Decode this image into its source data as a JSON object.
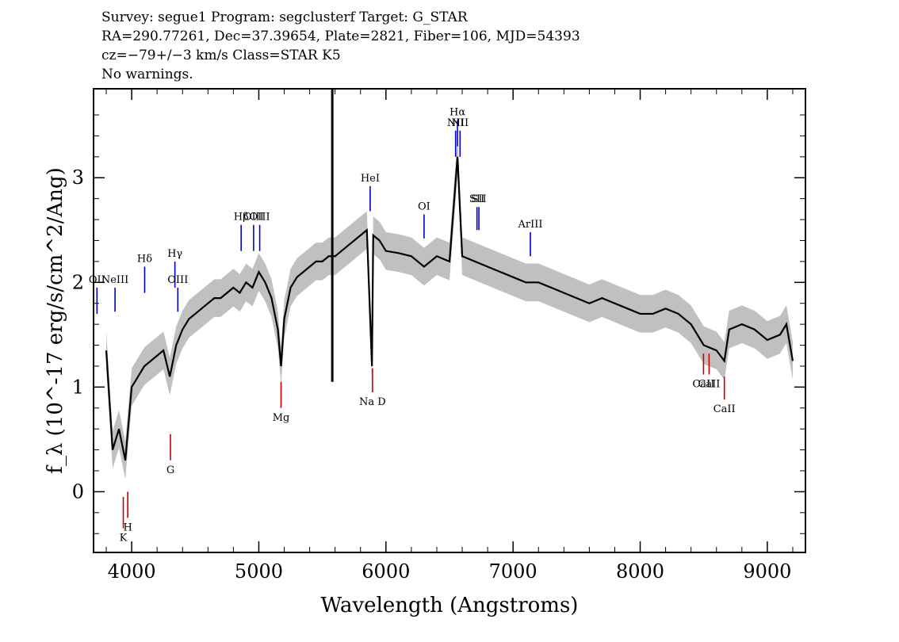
{
  "header": {
    "line1": "Survey: segue1 Program: segclusterf Target: G_STAR",
    "line2": "RA=290.77261, Dec=37.39654, Plate=2821, Fiber=106, MJD=54393",
    "line3": "cz=−79+/−3 km/s Class=STAR K5",
    "line4": "No warnings."
  },
  "chart_data": {
    "type": "line",
    "xlabel": "Wavelength (Angstroms)",
    "ylabel": "f_λ (10^-17 erg/s/cm^2/Ang)",
    "xlim": [
      3700,
      9300
    ],
    "ylim": [
      -0.58,
      3.85
    ],
    "xticks": [
      4000,
      5000,
      6000,
      7000,
      8000,
      9000
    ],
    "yticks": [
      0,
      1,
      2,
      3
    ],
    "grid": false,
    "colors": {
      "flux": "#000000",
      "error": "#c0c0c0",
      "emission": "#0000cc",
      "absorption": "#cc0000"
    },
    "series": [
      {
        "x": [
          3800,
          3850,
          3900,
          3950,
          4000,
          4050,
          4100,
          4150,
          4200,
          4250,
          4300,
          4350,
          4400,
          4450,
          4500,
          4550,
          4600,
          4650,
          4700,
          4750,
          4800,
          4850,
          4900,
          4950,
          5000,
          5050,
          5100,
          5150,
          5175,
          5200,
          5250,
          5300,
          5350,
          5400,
          5450,
          5500,
          5550,
          5600,
          5650,
          5700,
          5750,
          5800,
          5850,
          5890,
          5900,
          5950,
          6000,
          6100,
          6200,
          6300,
          6400,
          6500,
          6563,
          6600,
          6700,
          6800,
          6900,
          7000,
          7100,
          7200,
          7300,
          7400,
          7500,
          7600,
          7700,
          7800,
          7900,
          8000,
          8100,
          8200,
          8300,
          8400,
          8500,
          8600,
          8662,
          8700,
          8800,
          8900,
          9000,
          9100,
          9150,
          9200
        ],
        "values": [
          1.35,
          0.4,
          0.6,
          0.3,
          1.0,
          1.1,
          1.2,
          1.25,
          1.3,
          1.35,
          1.1,
          1.4,
          1.55,
          1.65,
          1.7,
          1.75,
          1.8,
          1.85,
          1.85,
          1.9,
          1.95,
          1.9,
          2.0,
          1.95,
          2.1,
          2.0,
          1.85,
          1.55,
          1.2,
          1.65,
          1.95,
          2.05,
          2.1,
          2.15,
          2.2,
          2.2,
          2.25,
          2.25,
          2.3,
          2.35,
          2.4,
          2.45,
          2.5,
          1.2,
          2.45,
          2.4,
          2.3,
          2.28,
          2.25,
          2.15,
          2.25,
          2.2,
          3.2,
          2.25,
          2.2,
          2.15,
          2.1,
          2.05,
          2.0,
          2.0,
          1.95,
          1.9,
          1.85,
          1.8,
          1.85,
          1.8,
          1.75,
          1.7,
          1.7,
          1.75,
          1.7,
          1.6,
          1.4,
          1.35,
          1.25,
          1.55,
          1.6,
          1.55,
          1.45,
          1.5,
          1.6,
          1.25
        ]
      }
    ],
    "spike": {
      "x": 5578,
      "values": [
        3.85,
        1.05
      ]
    },
    "emission_lines": [
      {
        "label": "OII",
        "x": 3727,
        "top": 1.95,
        "bottom": 1.7
      },
      {
        "label": "NeIII",
        "x": 3869,
        "top": 1.95,
        "bottom": 1.72
      },
      {
        "label": "Hδ",
        "x": 4102,
        "top": 2.15,
        "bottom": 1.9
      },
      {
        "label": "Hγ",
        "x": 4340,
        "top": 2.2,
        "bottom": 1.95
      },
      {
        "label": "OIII",
        "x": 4363,
        "top": 1.95,
        "bottom": 1.72
      },
      {
        "label": "Hβ",
        "x": 4861,
        "top": 2.55,
        "bottom": 2.3
      },
      {
        "label": "OIII",
        "x": 4959,
        "top": 2.55,
        "bottom": 2.3
      },
      {
        "label": "OIII",
        "x": 5007,
        "top": 2.55,
        "bottom": 2.3
      },
      {
        "label": "HeI",
        "x": 5876,
        "top": 2.92,
        "bottom": 2.68
      },
      {
        "label": "OI",
        "x": 6300,
        "top": 2.65,
        "bottom": 2.42
      },
      {
        "label": "NII",
        "x": 6548,
        "top": 3.45,
        "bottom": 3.2
      },
      {
        "label": "Hα",
        "x": 6563,
        "top": 3.55,
        "bottom": 3.3
      },
      {
        "label": "NII",
        "x": 6583,
        "top": 3.45,
        "bottom": 3.2
      },
      {
        "label": "SII",
        "x": 6716,
        "top": 2.72,
        "bottom": 2.5
      },
      {
        "label": "SII",
        "x": 6731,
        "top": 2.72,
        "bottom": 2.5
      },
      {
        "label": "ArIII",
        "x": 7136,
        "top": 2.48,
        "bottom": 2.25
      }
    ],
    "absorption_lines": [
      {
        "label": "K",
        "x": 3934,
        "top": -0.05,
        "bottom": -0.35
      },
      {
        "label": "H",
        "x": 3969,
        "top": 0.0,
        "bottom": -0.25
      },
      {
        "label": "G",
        "x": 4305,
        "top": 0.55,
        "bottom": 0.3
      },
      {
        "label": "Mg",
        "x": 5175,
        "top": 1.05,
        "bottom": 0.8
      },
      {
        "label": "Na D",
        "x": 5894,
        "top": 1.18,
        "bottom": 0.95
      },
      {
        "label": "CaII",
        "x": 8498,
        "top": 1.32,
        "bottom": 1.12
      },
      {
        "label": "CaII",
        "x": 8542,
        "top": 1.32,
        "bottom": 1.12
      },
      {
        "label": "CaII",
        "x": 8662,
        "top": 1.1,
        "bottom": 0.88
      }
    ]
  }
}
